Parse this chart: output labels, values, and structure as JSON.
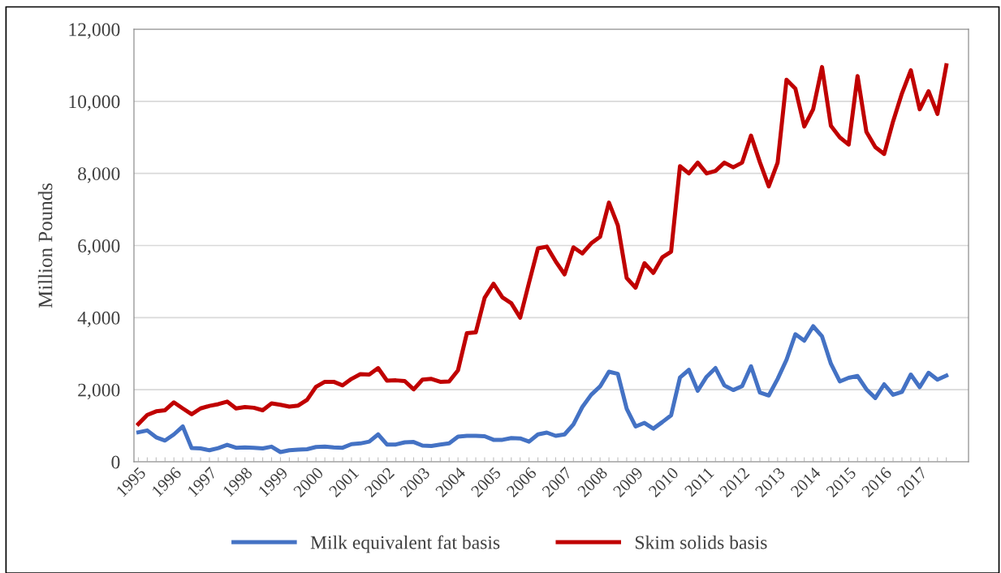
{
  "chart_data": {
    "type": "line",
    "ylabel": "Million Pounds",
    "categories": [
      "1995",
      null,
      null,
      null,
      "1996",
      null,
      null,
      null,
      "1997",
      null,
      null,
      null,
      "1998",
      null,
      null,
      null,
      "1999",
      null,
      null,
      null,
      "2000",
      null,
      null,
      null,
      "2001",
      null,
      null,
      null,
      "2002",
      null,
      null,
      null,
      "2003",
      null,
      null,
      null,
      "2004",
      null,
      null,
      null,
      "2005",
      null,
      null,
      null,
      "2006",
      null,
      null,
      null,
      "2007",
      null,
      null,
      null,
      "2008",
      null,
      null,
      null,
      "2009",
      null,
      null,
      null,
      "2010",
      null,
      null,
      null,
      "2011",
      null,
      null,
      null,
      "2012",
      null,
      null,
      null,
      "2013",
      null,
      null,
      null,
      "2014",
      null,
      null,
      null,
      "2015",
      null,
      null,
      null,
      "2016",
      null,
      null,
      null,
      "2017",
      null,
      null,
      null
    ],
    "series": [
      {
        "name": "Milk equivalent fat basis",
        "color": "#4472c4",
        "values": [
          820,
          870,
          680,
          590,
          760,
          980,
          380,
          370,
          320,
          380,
          470,
          390,
          400,
          390,
          370,
          420,
          270,
          320,
          340,
          350,
          410,
          420,
          400,
          390,
          490,
          510,
          560,
          760,
          480,
          480,
          540,
          550,
          450,
          440,
          480,
          510,
          700,
          720,
          720,
          710,
          610,
          610,
          660,
          650,
          560,
          760,
          810,
          720,
          760,
          1040,
          1520,
          1860,
          2090,
          2500,
          2440,
          1470,
          980,
          1080,
          920,
          1100,
          1290,
          2340,
          2550,
          1970,
          2360,
          2600,
          2120,
          1990,
          2100,
          2650,
          1920,
          1840,
          2300,
          2830,
          3540,
          3360,
          3760,
          3480,
          2720,
          2230,
          2330,
          2380,
          2010,
          1770,
          2150,
          1860,
          1940,
          2420,
          2070,
          2470,
          2280,
          2390
        ]
      },
      {
        "name": "Skim solids basis",
        "color": "#c00000",
        "values": [
          1050,
          1300,
          1400,
          1430,
          1650,
          1480,
          1320,
          1480,
          1550,
          1600,
          1670,
          1480,
          1520,
          1500,
          1430,
          1620,
          1580,
          1530,
          1560,
          1720,
          2080,
          2220,
          2220,
          2120,
          2300,
          2430,
          2420,
          2600,
          2250,
          2260,
          2240,
          2010,
          2280,
          2300,
          2220,
          2230,
          2540,
          3570,
          3590,
          4550,
          4940,
          4560,
          4400,
          4000,
          4970,
          5920,
          5970,
          5560,
          5200,
          5950,
          5780,
          6060,
          6240,
          7190,
          6560,
          5100,
          4830,
          5510,
          5240,
          5670,
          5830,
          8200,
          8000,
          8300,
          8000,
          8070,
          8300,
          8170,
          8300,
          9050,
          8310,
          7640,
          8300,
          10600,
          10350,
          9300,
          9780,
          10950,
          9320,
          9000,
          8800,
          10700,
          9150,
          8730,
          8540,
          9440,
          10220,
          10860,
          9780,
          10280,
          9650,
          11000
        ]
      }
    ],
    "ylim": [
      0,
      12000
    ],
    "yticks": [
      {
        "value": 0,
        "label": "0"
      },
      {
        "value": 2000,
        "label": "2,000"
      },
      {
        "value": 4000,
        "label": "4,000"
      },
      {
        "value": 6000,
        "label": "6,000"
      },
      {
        "value": 8000,
        "label": "8,000"
      },
      {
        "value": 10000,
        "label": "10,000"
      },
      {
        "value": 12000,
        "label": "12,000"
      }
    ],
    "grid": "y",
    "legend": "bottom",
    "marker": "none",
    "line_style": "solid"
  }
}
